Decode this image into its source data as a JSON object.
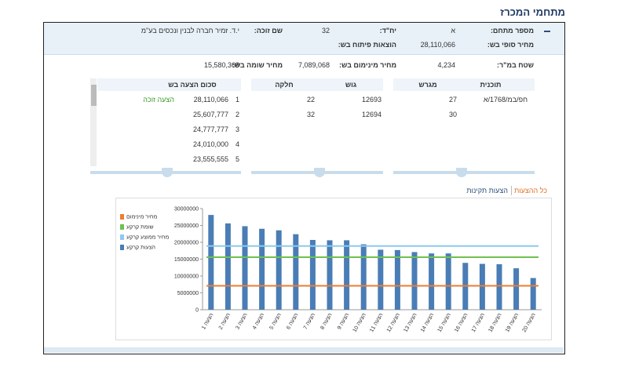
{
  "header": {
    "title": "מתחמי המכרז"
  },
  "panel": {
    "fields": [
      {
        "label": "מספר מתחם:",
        "value": "א"
      },
      {
        "label": "יח\"ד:",
        "value": "32"
      },
      {
        "label": "שם זוכה:",
        "value": "י.ד. זמיר חברה לבנין ונכסים בע\"מ"
      },
      {
        "label": "מחיר סופי בש:",
        "value": "28,110,066"
      },
      {
        "label": "הוצאות פיתוח בש:"
      },
      {
        "label": "שטח במ\"ר:",
        "value": "4,234"
      },
      {
        "label": "מחיר מינימום בש:",
        "value": "7,089,068"
      },
      {
        "label": "מחיר שומה בש:",
        "value": "15,580,369"
      }
    ]
  },
  "tables": {
    "plans": {
      "headers": [
        "תוכנית",
        "מגרש"
      ],
      "rows": [
        [
          "חפ/במ/1768/א",
          "27"
        ],
        [
          null,
          "30"
        ]
      ]
    },
    "parcels": {
      "headers": [
        "גוש",
        "חלקה"
      ],
      "rows": [
        [
          "12693",
          "22"
        ],
        [
          "12694",
          "32"
        ]
      ]
    },
    "bids": {
      "header": "סכום הצעה בש",
      "winner": "הצעה זוכה",
      "rows": [
        [
          "1",
          "28,110,066"
        ],
        [
          "2",
          "25,607,777"
        ],
        [
          "3",
          "24,777,777"
        ],
        [
          "4",
          "24,010,000"
        ],
        [
          "5",
          "23,555,555"
        ]
      ]
    }
  },
  "tabs": [
    "כל ההצעות",
    "הצעות תקינות"
  ],
  "chart_data": {
    "type": "bar",
    "categories": [
      "הצעה 1",
      "הצעה 2",
      "הצעה 3",
      "הצעה 4",
      "הצעה 5",
      "הצעה 6",
      "הצעה 7",
      "הצעה 8",
      "הצעה 9",
      "הצעה 10",
      "הצעה 11",
      "הצעה 12",
      "הצעה 13",
      "הצעה 14",
      "הצעה 15",
      "הצעה 16",
      "הצעה 17",
      "הצעה 18",
      "הצעה 19",
      "הצעה 20"
    ],
    "series": [
      {
        "name": "הצעות קרקע",
        "color": "#4a7db5",
        "values": [
          28110066,
          25607777,
          24777777,
          24010000,
          23555555,
          22400000,
          20700000,
          20600000,
          20600000,
          19400000,
          17800000,
          17700000,
          17100000,
          16700000,
          16700000,
          13900000,
          13600000,
          13500000,
          12300000,
          9400000
        ]
      }
    ],
    "lines": [
      {
        "name": "מחיר מינימום",
        "color": "#ed7d31",
        "value": 7089068
      },
      {
        "name": "שומת קרקע",
        "color": "#70c050",
        "value": 15580369
      },
      {
        "name": "מחיר ממוצע קרקע",
        "color": "#8ec9ef",
        "value": 18900000
      }
    ],
    "ylim": [
      0,
      30000000
    ],
    "yticks": [
      0,
      5000000,
      10000000,
      15000000,
      20000000,
      25000000,
      30000000
    ]
  }
}
